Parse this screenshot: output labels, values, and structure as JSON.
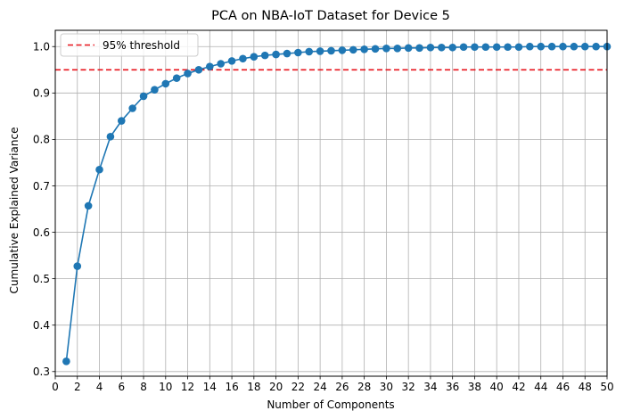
{
  "chart_data": {
    "type": "line",
    "title": "PCA on NBA-IoT Dataset for Device 5",
    "xlabel": "Number of Components",
    "ylabel": "Cumulative Explained Variance",
    "xlim": [
      0,
      50
    ],
    "ylim": [
      0.29,
      1.035
    ],
    "x_ticks": [
      0,
      2,
      4,
      6,
      8,
      10,
      12,
      14,
      16,
      18,
      20,
      22,
      24,
      26,
      28,
      30,
      32,
      34,
      36,
      38,
      40,
      42,
      44,
      46,
      48,
      50
    ],
    "x_tick_labels": [
      "0",
      "2",
      "4",
      "6",
      "8",
      "10",
      "12",
      "14",
      "16",
      "18",
      "20",
      "22",
      "24",
      "26",
      "28",
      "30",
      "32",
      "34",
      "36",
      "38",
      "40",
      "42",
      "44",
      "46",
      "48",
      "50"
    ],
    "y_ticks": [
      0.3,
      0.4,
      0.5,
      0.6,
      0.7,
      0.8,
      0.9,
      1.0
    ],
    "y_tick_labels": [
      "0.3",
      "0.4",
      "0.5",
      "0.6",
      "0.7",
      "0.8",
      "0.9",
      "1.0"
    ],
    "grid": true,
    "legend_position": "top-left",
    "series": [
      {
        "marker": "circle",
        "color": "#1f77b4",
        "x": [
          1,
          2,
          3,
          4,
          5,
          6,
          7,
          8,
          9,
          10,
          11,
          12,
          13,
          14,
          15,
          16,
          17,
          18,
          19,
          20,
          21,
          22,
          23,
          24,
          25,
          26,
          27,
          28,
          29,
          30,
          31,
          32,
          33,
          34,
          35,
          36,
          37,
          38,
          39,
          40,
          41,
          42,
          43,
          44,
          45,
          46,
          47,
          48,
          49,
          50
        ],
        "values": [
          0.322,
          0.527,
          0.657,
          0.735,
          0.806,
          0.84,
          0.867,
          0.893,
          0.907,
          0.92,
          0.932,
          0.942,
          0.95,
          0.957,
          0.963,
          0.969,
          0.974,
          0.978,
          0.981,
          0.983,
          0.985,
          0.987,
          0.989,
          0.99,
          0.991,
          0.992,
          0.993,
          0.994,
          0.995,
          0.996,
          0.996,
          0.997,
          0.997,
          0.998,
          0.998,
          0.998,
          0.999,
          0.999,
          0.999,
          0.999,
          0.999,
          0.999,
          1.0,
          1.0,
          1.0,
          1.0,
          1.0,
          1.0,
          1.0,
          1.0
        ]
      }
    ],
    "threshold": {
      "name": "95% threshold",
      "value": 0.95,
      "color": "#e8131b",
      "style": "dashed"
    }
  }
}
